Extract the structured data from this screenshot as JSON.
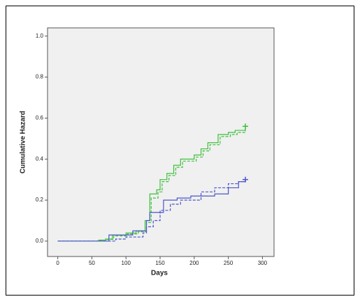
{
  "chart_data": {
    "type": "step",
    "x_label": "Days",
    "y_label": "Cumulative Hazard",
    "xlim": [
      -15,
      317
    ],
    "ylim": [
      -0.075,
      1.04
    ],
    "xticks": [
      0,
      50,
      100,
      150,
      200,
      250,
      300
    ],
    "yticks": [
      {
        "value": 0,
        "label": "0.0"
      },
      {
        "value": 0.2,
        "label": "0.2"
      },
      {
        "value": 0.4,
        "label": "0.4"
      },
      {
        "value": 0.6,
        "label": "0.6"
      },
      {
        "value": 0.8,
        "label": "0.8"
      },
      {
        "value": 1,
        "label": "1.0"
      }
    ],
    "series": [
      {
        "color": "#3cbf3c",
        "dash": false,
        "x": [
          0,
          60,
          70,
          80,
          100,
          115,
          128,
          135,
          145,
          150,
          160,
          170,
          180,
          200,
          210,
          220,
          235,
          250,
          260,
          275
        ],
        "values": [
          0,
          0.005,
          0.01,
          0.03,
          0.04,
          0.05,
          0.1,
          0.23,
          0.25,
          0.3,
          0.33,
          0.37,
          0.4,
          0.42,
          0.45,
          0.48,
          0.52,
          0.53,
          0.54,
          0.56
        ]
      },
      {
        "color": "#3cbf3c",
        "dash": true,
        "x": [
          0,
          60,
          72,
          82,
          102,
          118,
          130,
          137,
          147,
          153,
          163,
          173,
          183,
          203,
          213,
          223,
          238,
          253,
          263,
          275
        ],
        "values": [
          0,
          0.004,
          0.008,
          0.025,
          0.035,
          0.045,
          0.09,
          0.21,
          0.24,
          0.29,
          0.32,
          0.36,
          0.39,
          0.41,
          0.44,
          0.47,
          0.51,
          0.52,
          0.53,
          0.555
        ]
      },
      {
        "color": "#4a56c8",
        "dash": false,
        "x": [
          0,
          75,
          110,
          130,
          135,
          155,
          175,
          195,
          230,
          250,
          265,
          275
        ],
        "values": [
          0,
          0.03,
          0.05,
          0.1,
          0.14,
          0.2,
          0.21,
          0.22,
          0.23,
          0.26,
          0.29,
          0.3
        ]
      },
      {
        "color": "#4a56c8",
        "dash": true,
        "x": [
          0,
          85,
          100,
          125,
          130,
          140,
          150,
          165,
          180,
          210,
          230,
          250,
          265,
          275
        ],
        "values": [
          0,
          0.01,
          0.02,
          0.04,
          0.07,
          0.1,
          0.15,
          0.18,
          0.2,
          0.24,
          0.26,
          0.28,
          0.29,
          0.3
        ]
      }
    ]
  }
}
